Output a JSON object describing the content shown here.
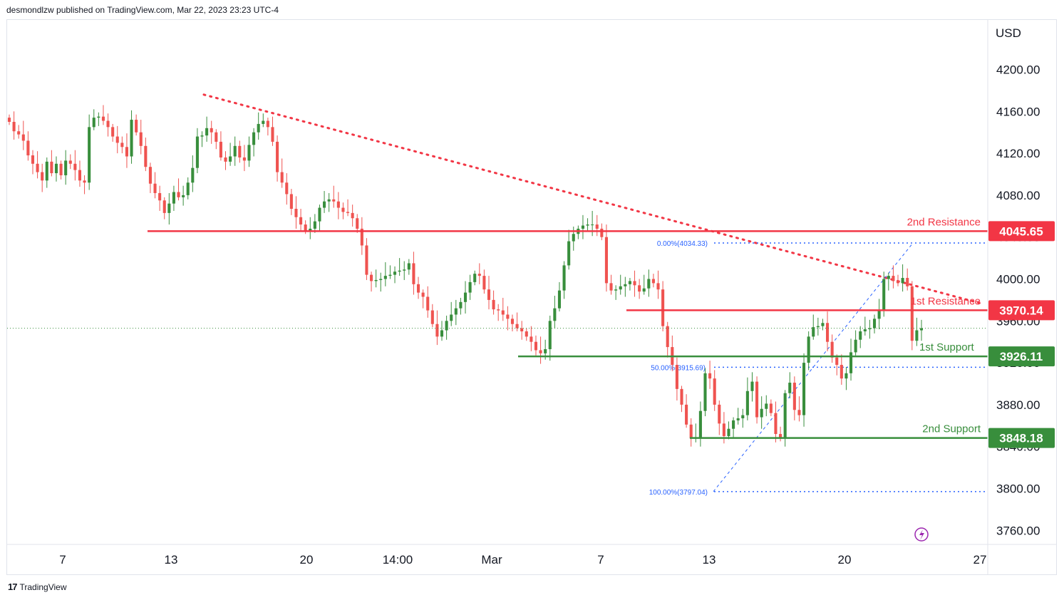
{
  "header": {
    "text": "desmondlzw published on TradingView.com, Mar 22, 2023 23:23 UTC-4"
  },
  "footer": {
    "brand": "TradingView"
  },
  "colors": {
    "up": "#388e3c",
    "down": "#ef5350",
    "resistance": "#f23645",
    "support": "#388e3c",
    "fib": "#2962ff"
  },
  "chart_data": {
    "type": "candlestick",
    "currency": "USD",
    "ylim": [
      3740,
      4240
    ],
    "y_ticks": [
      "4200.00",
      "4160.00",
      "4120.00",
      "4080.00",
      "4040.00",
      "4000.00",
      "3960.00",
      "3920.00",
      "3880.00",
      "3840.00",
      "3800.00",
      "3760.00"
    ],
    "x_ticks": [
      "7",
      "13",
      "20",
      "14:00",
      "Mar",
      "7",
      "13",
      "20",
      "27"
    ],
    "last_price": 3953,
    "levels": [
      {
        "label": "2nd Resistance",
        "value": 4045.65,
        "display": "4045.65",
        "kind": "resistance"
      },
      {
        "label": "1st Resistance",
        "value": 3970.14,
        "display": "3970.14",
        "kind": "resistance"
      },
      {
        "label": "1st Support",
        "value": 3926.11,
        "display": "3926.11",
        "kind": "support"
      },
      {
        "label": "2nd Support",
        "value": 3848.18,
        "display": "3848.18",
        "kind": "support"
      }
    ],
    "fibonacci": [
      {
        "label": "0.00%(4034.33)",
        "value": 4034.33
      },
      {
        "label": "50.00%(3915.69)",
        "value": 3915.69
      },
      {
        "label": "100.00%(3797.04)",
        "value": 3797.04
      }
    ],
    "trendline": {
      "from": 4176,
      "to": 3976
    },
    "closes": [
      4150,
      4141,
      4138,
      4132,
      4118,
      4110,
      4102,
      4094,
      4112,
      4101,
      4110,
      4099,
      4113,
      4110,
      4104,
      4094,
      4092,
      4145,
      4154,
      4155,
      4151,
      4145,
      4136,
      4130,
      4126,
      4117,
      4152,
      4140,
      4127,
      4107,
      4091,
      4082,
      4075,
      4063,
      4072,
      4083,
      4078,
      4080,
      4092,
      4106,
      4136,
      4137,
      4144,
      4140,
      4131,
      4116,
      4112,
      4117,
      4127,
      4116,
      4113,
      4128,
      4140,
      4148,
      4151,
      4145,
      4131,
      4102,
      4092,
      4081,
      4067,
      4059,
      4052,
      4046,
      4048,
      4055,
      4068,
      4074,
      4076,
      4074,
      4068,
      4064,
      4063,
      4058,
      4048,
      4032,
      4004,
      3998,
      3999,
      4000,
      4003,
      4004,
      4007,
      4008,
      4009,
      4015,
      3995,
      3987,
      3983,
      3970,
      3957,
      3945,
      3951,
      3960,
      3966,
      3972,
      3978,
      3987,
      3997,
      4005,
      4003,
      3990,
      3980,
      3971,
      3970,
      3966,
      3962,
      3957,
      3953,
      3950,
      3945,
      3940,
      3932,
      3929,
      3933,
      3960,
      3972,
      3989,
      4013,
      4036,
      4043,
      4048,
      4051,
      4052,
      4052,
      4048,
      4040,
      3996,
      3989,
      3990,
      3993,
      3995,
      3998,
      3994,
      3988,
      3991,
      4000,
      3996,
      3990,
      3955,
      3935,
      3918,
      3895,
      3880,
      3861,
      3848,
      3849,
      3874,
      3910,
      3905,
      3880,
      3862,
      3850,
      3857,
      3865,
      3867,
      3870,
      3893,
      3902,
      3868,
      3876,
      3881,
      3872,
      3852,
      3849,
      3891,
      3901,
      3875,
      3870,
      3920,
      3945,
      3954,
      3955,
      3958,
      3940,
      3925,
      3918,
      3905,
      3910,
      3930,
      3942,
      3950,
      3952,
      3953,
      3962,
      3970,
      4000,
      4003,
      3998,
      3996,
      4001,
      3993,
      3941,
      3951,
      3953
    ]
  }
}
